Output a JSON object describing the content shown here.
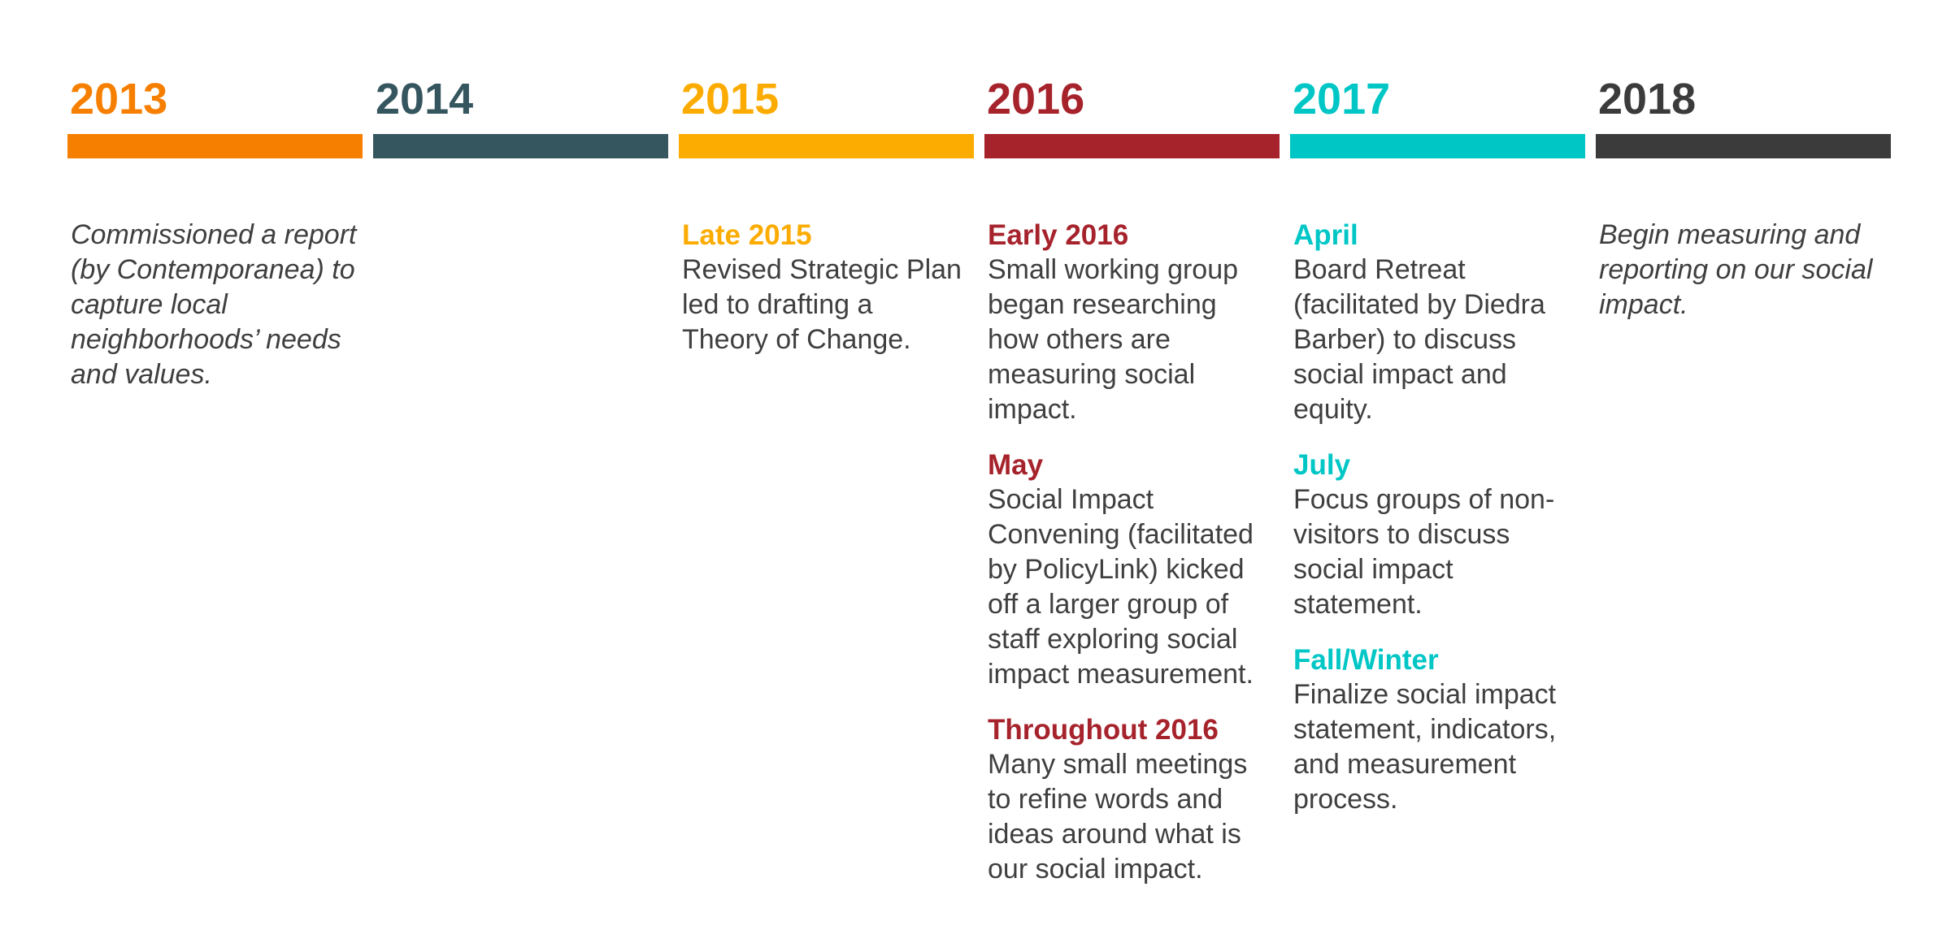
{
  "timeline": {
    "columns": [
      {
        "year": "2013",
        "color": "#F77F00",
        "entries": [
          {
            "heading": "",
            "text": "Commissioned a report\n(by Contemporanea) to\ncapture local\nneighborhoods’ needs\nand values.",
            "italic": true
          }
        ]
      },
      {
        "year": "2014",
        "color": "#36565F",
        "entries": []
      },
      {
        "year": "2015",
        "color": "#FCAB00",
        "entries": [
          {
            "heading": "Late 2015",
            "text": "Revised Strategic Plan\nled to drafting a\nTheory of Change.",
            "italic": false
          }
        ]
      },
      {
        "year": "2016",
        "color": "#A6232C",
        "entries": [
          {
            "heading": "Early 2016",
            "text": "Small working group\nbegan researching\nhow others are\nmeasuring social\nimpact.",
            "italic": false
          },
          {
            "heading": "May",
            "text": "Social Impact\nConvening (facilitated\nby PolicyLink) kicked\noff a larger group of\nstaff exploring social\nimpact measurement.",
            "italic": false
          },
          {
            "heading": "Throughout 2016",
            "text": "Many small meetings\nto refine words and\nideas around what is\nour social impact.",
            "italic": false
          }
        ]
      },
      {
        "year": "2017",
        "color": "#00C6C6",
        "entries": [
          {
            "heading": "April",
            "text": "Board Retreat\n(facilitated by Diedra\nBarber) to discuss\nsocial impact and\nequity.",
            "italic": false
          },
          {
            "heading": "July",
            "text": "Focus groups of non-\nvisitors to discuss\nsocial impact\nstatement.",
            "italic": false
          },
          {
            "heading": "Fall/Winter",
            "text": "Finalize social impact\nstatement, indicators,\nand measurement\nprocess.",
            "italic": false
          }
        ]
      },
      {
        "year": "2018",
        "color": "#3B3B3B",
        "entries": [
          {
            "heading": "",
            "text": "Begin measuring and\nreporting on our social\nimpact.",
            "italic": true
          }
        ]
      }
    ]
  }
}
